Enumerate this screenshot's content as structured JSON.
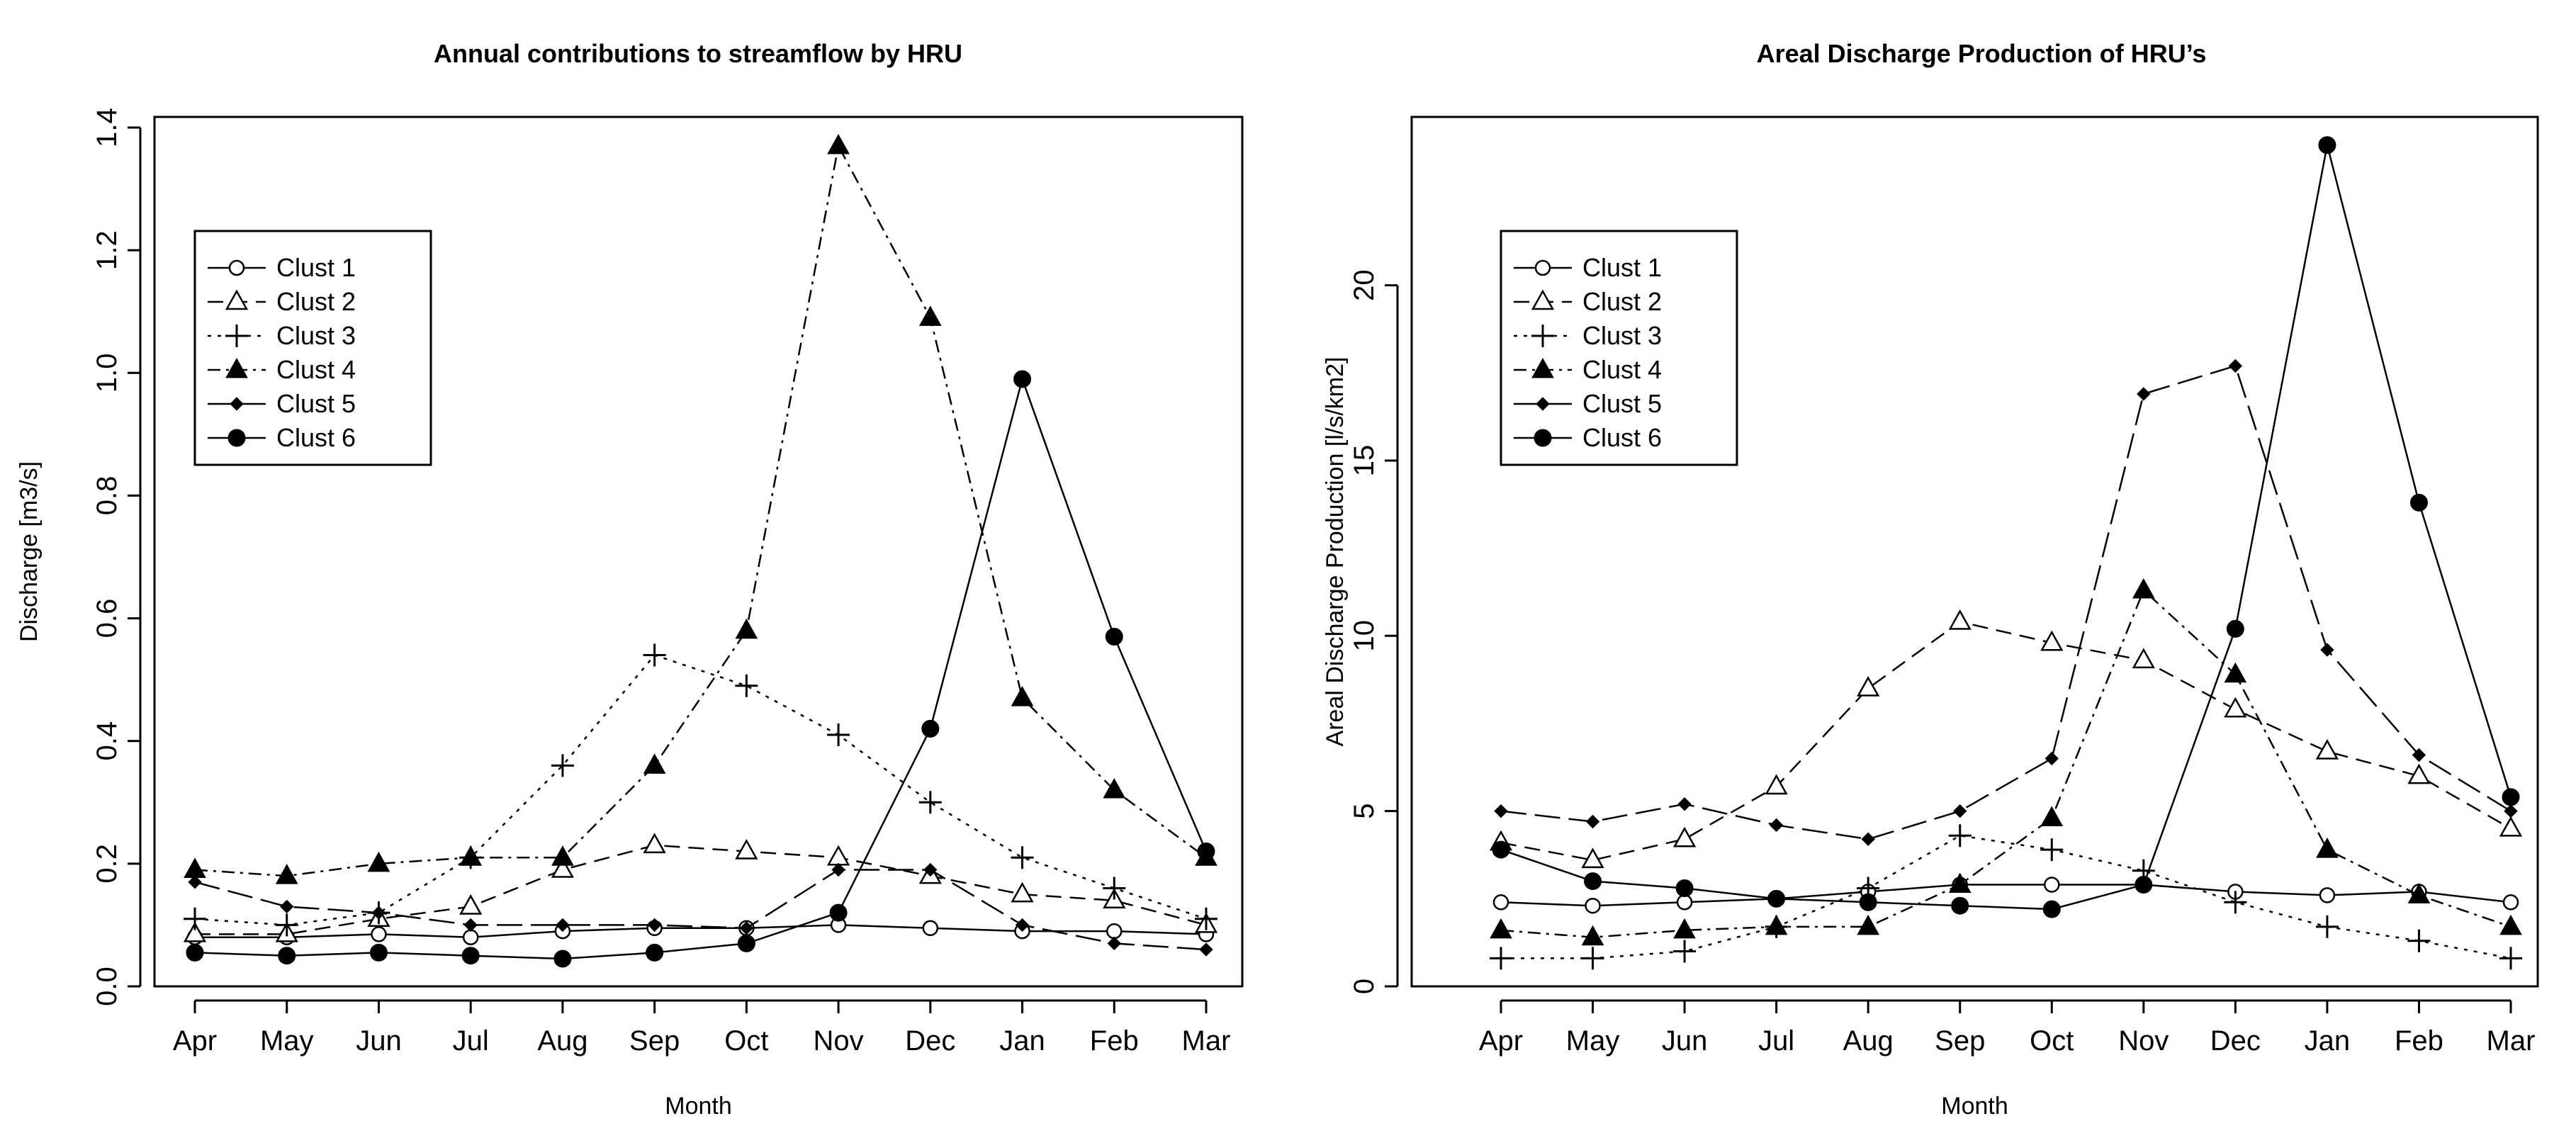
{
  "chart_data": [
    {
      "type": "line",
      "title": "Annual contributions to streamflow by HRU",
      "xlabel": "Month",
      "ylabel": "Discharge [m3/s]",
      "categories": [
        "Apr",
        "May",
        "Jun",
        "Jul",
        "Aug",
        "Sep",
        "Oct",
        "Nov",
        "Dec",
        "Jan",
        "Feb",
        "Mar"
      ],
      "ylim": [
        0,
        1.4
      ],
      "yticks": [
        "0.0",
        "0.2",
        "0.4",
        "0.6",
        "0.8",
        "1.0",
        "1.2",
        "1.4"
      ],
      "legend": "top-left",
      "series": [
        {
          "name": "Clust 1",
          "line": "solid",
          "marker": "open-circle",
          "values": [
            0.08,
            0.08,
            0.085,
            0.08,
            0.09,
            0.095,
            0.095,
            0.1,
            0.095,
            0.09,
            0.09,
            0.085
          ]
        },
        {
          "name": "Clust 2",
          "line": "dashed",
          "marker": "open-triangle",
          "values": [
            0.085,
            0.085,
            0.11,
            0.13,
            0.19,
            0.23,
            0.22,
            0.21,
            0.18,
            0.15,
            0.14,
            0.1
          ]
        },
        {
          "name": "Clust 3",
          "line": "dotted",
          "marker": "plus",
          "values": [
            0.11,
            0.1,
            0.12,
            0.21,
            0.36,
            0.54,
            0.49,
            0.41,
            0.3,
            0.21,
            0.16,
            0.11
          ]
        },
        {
          "name": "Clust 4",
          "line": "dash-dot",
          "marker": "filled-triangle",
          "values": [
            0.19,
            0.18,
            0.2,
            0.21,
            0.21,
            0.36,
            0.58,
            1.37,
            1.09,
            0.47,
            0.32,
            0.21
          ]
        },
        {
          "name": "Clust 5",
          "line": "long-dash",
          "marker": "filled-diamond",
          "values": [
            0.17,
            0.13,
            0.12,
            0.1,
            0.1,
            0.1,
            0.095,
            0.19,
            0.19,
            0.1,
            0.07,
            0.06
          ]
        },
        {
          "name": "Clust 6",
          "line": "solid",
          "marker": "filled-circle",
          "values": [
            0.055,
            0.05,
            0.055,
            0.05,
            0.045,
            0.055,
            0.07,
            0.12,
            0.42,
            0.99,
            0.57,
            0.22
          ]
        }
      ]
    },
    {
      "type": "line",
      "title": "Areal Discharge Production of HRU’s",
      "xlabel": "Month",
      "ylabel": "Areal Discharge Production [l/s/km2]",
      "categories": [
        "Apr",
        "May",
        "Jun",
        "Jul",
        "Aug",
        "Sep",
        "Oct",
        "Nov",
        "Dec",
        "Jan",
        "Feb",
        "Mar"
      ],
      "ylim": [
        0,
        24.5
      ],
      "yticks": [
        "0",
        "5",
        "10",
        "15",
        "20"
      ],
      "legend": "top-left",
      "series": [
        {
          "name": "Clust 1",
          "line": "solid",
          "marker": "open-circle",
          "values": [
            2.4,
            2.3,
            2.4,
            2.5,
            2.7,
            2.9,
            2.9,
            2.9,
            2.7,
            2.6,
            2.7,
            2.4
          ]
        },
        {
          "name": "Clust 2",
          "line": "dashed",
          "marker": "open-triangle",
          "values": [
            4.1,
            3.6,
            4.2,
            5.7,
            8.5,
            10.4,
            9.8,
            9.3,
            7.9,
            6.7,
            6.0,
            4.5
          ]
        },
        {
          "name": "Clust 3",
          "line": "dotted",
          "marker": "plus",
          "values": [
            0.8,
            0.8,
            1.0,
            1.7,
            2.8,
            4.3,
            3.9,
            3.3,
            2.4,
            1.7,
            1.3,
            0.8
          ]
        },
        {
          "name": "Clust 4",
          "line": "dash-dot",
          "marker": "filled-triangle",
          "values": [
            1.6,
            1.4,
            1.6,
            1.7,
            1.7,
            2.9,
            4.8,
            11.3,
            8.9,
            3.9,
            2.6,
            1.7
          ]
        },
        {
          "name": "Clust 5",
          "line": "long-dash",
          "marker": "filled-diamond",
          "values": [
            5.0,
            4.7,
            5.2,
            4.6,
            4.2,
            5.0,
            6.5,
            16.9,
            17.7,
            9.6,
            6.6,
            5.0
          ]
        },
        {
          "name": "Clust 6",
          "line": "solid",
          "marker": "filled-circle",
          "values": [
            3.9,
            3.0,
            2.8,
            2.5,
            2.4,
            2.3,
            2.2,
            2.9,
            10.2,
            24.0,
            13.8,
            5.4
          ]
        }
      ]
    }
  ]
}
